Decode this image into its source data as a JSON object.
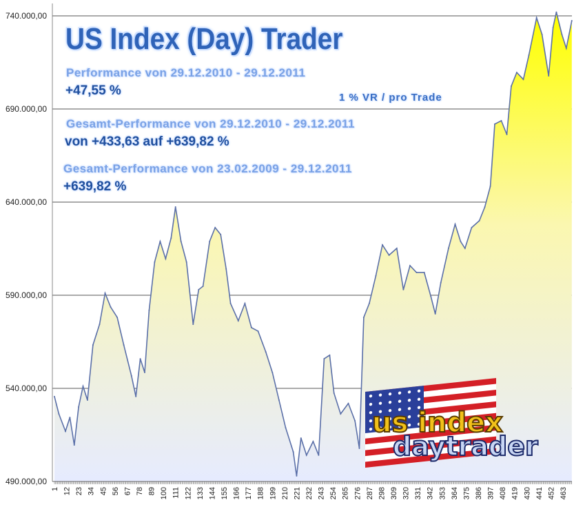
{
  "overlay": {
    "title": "US Index (Day) Trader",
    "perf_label": "Performance  von  29.12.2010 - 29.12.2011",
    "perf_value": "+47,55  %",
    "risk_note": "1 % VR / pro Trade",
    "total_label_1": "Gesamt-Performance  von  29.12.2010 - 29.12.2011",
    "total_value_1": "von +433,63 auf +639,82 %",
    "total_label_2": "Gesamt-Performance  von  23.02.2009 - 29.12.2011",
    "total_value_2": "+639,82 %"
  },
  "logo": {
    "text_line1": "us index",
    "text_line2": "daytrader",
    "icon": "us-flag-icon"
  },
  "colors": {
    "line": "#5a6fa8",
    "fill_top": "#ffff00",
    "fill_mid": "#fbf7b0",
    "fill_bottom": "#e6ebff",
    "grid": "#555555"
  },
  "chart_data": {
    "type": "area",
    "title": "US Index (Day) Trader",
    "xlabel": "",
    "ylabel": "",
    "ylim": [
      490000,
      740000
    ],
    "xlim": [
      1,
      471
    ],
    "y_ticks": [
      "490.000,00",
      "540.000,00",
      "590.000,00",
      "640.000,00",
      "690.000,00",
      "740.000,00"
    ],
    "y_tick_values": [
      490000,
      540000,
      590000,
      640000,
      690000,
      740000
    ],
    "x_ticks": [
      1,
      12,
      23,
      34,
      45,
      56,
      67,
      78,
      89,
      100,
      111,
      122,
      133,
      144,
      155,
      166,
      177,
      188,
      199,
      210,
      221,
      232,
      243,
      254,
      265,
      276,
      287,
      298,
      309,
      320,
      331,
      342,
      353,
      364,
      375,
      386,
      397,
      408,
      419,
      430,
      441,
      452,
      463
    ],
    "grid": "horizontal",
    "legend": "none",
    "x": [
      1,
      5,
      11,
      15,
      19,
      23,
      27,
      31,
      36,
      42,
      47,
      52,
      58,
      64,
      71,
      75,
      79,
      83,
      87,
      92,
      97,
      102,
      107,
      111,
      116,
      121,
      127,
      132,
      136,
      142,
      147,
      152,
      157,
      161,
      168,
      174,
      180,
      186,
      193,
      199,
      205,
      211,
      218,
      221,
      225,
      230,
      236,
      241,
      246,
      251,
      255,
      261,
      268,
      274,
      278,
      282,
      287,
      293,
      299,
      305,
      312,
      318,
      324,
      330,
      337,
      343,
      347,
      352,
      359,
      365,
      370,
      374,
      380,
      387,
      392,
      397,
      401,
      407,
      412,
      416,
      421,
      427,
      432,
      439,
      444,
      450,
      454,
      457,
      462,
      466,
      471
    ],
    "values": [
      535600,
      526300,
      517000,
      524400,
      509600,
      530000,
      541100,
      533700,
      563300,
      574400,
      591100,
      583700,
      578100,
      563300,
      546700,
      535600,
      555900,
      548500,
      581900,
      607800,
      618900,
      609600,
      620700,
      637400,
      618900,
      607800,
      574400,
      593000,
      594800,
      618900,
      626300,
      622600,
      604100,
      585600,
      576300,
      585600,
      572600,
      570700,
      559600,
      548500,
      533700,
      518900,
      505900,
      493000,
      513300,
      504100,
      511500,
      504100,
      555900,
      557800,
      537400,
      526300,
      531900,
      522600,
      507800,
      578100,
      585600,
      600400,
      617000,
      611500,
      615200,
      593000,
      605900,
      602200,
      602200,
      589300,
      580000,
      596700,
      615200,
      628100,
      618900,
      615200,
      626300,
      630000,
      637400,
      648500,
      681900,
      683700,
      676300,
      702200,
      709600,
      705900,
      718900,
      739000,
      730000,
      707800,
      733700,
      742000,
      730000,
      722600,
      737400
    ]
  }
}
